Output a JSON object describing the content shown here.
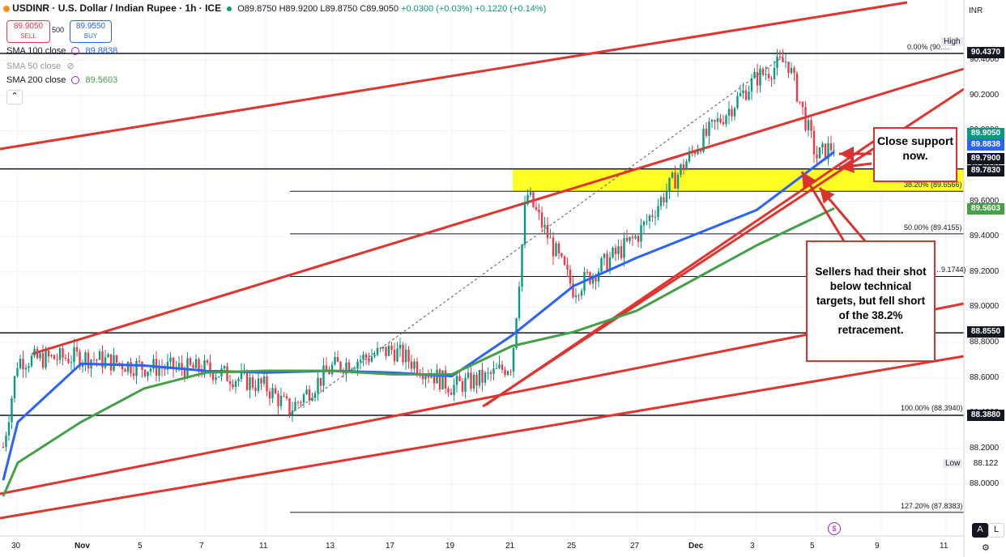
{
  "header": {
    "symbol": "USDINR · U.S. Dollar / Indian Rupee · 1h · ICE",
    "ohlc": "O89.8750 H89.9200 L89.8750 C89.9050",
    "change": "+0.0300 (+0.03%) +0.1220 (+0.14%)"
  },
  "trade": {
    "sell_price": "89.9050",
    "sell_label": "SELL",
    "spread": "500",
    "buy_price": "89.9550",
    "buy_label": "BUY"
  },
  "indicators": [
    {
      "label": "SMA 100 close",
      "value": "89.8838",
      "color": "#2962ff"
    },
    {
      "label": "SMA 50 close",
      "value": "",
      "color": "#9598a1"
    },
    {
      "label": "SMA 200 close",
      "value": "89.5603",
      "color": "#4caf50"
    }
  ],
  "currency": "INR",
  "high_label": "High",
  "low_label": "Low",
  "axis_buttons": {
    "auto": "A",
    "log": "L"
  },
  "colors": {
    "up": "#089981",
    "down": "#f23645",
    "sma100": "#2962ff",
    "sma200": "#43a047",
    "trend": "#e0342f",
    "zone": "#ffff00"
  },
  "annotations": {
    "close_support": "Close support now.",
    "sellers": "Sellers had their shot below technical targets, but fell short of the 38.2% retracement."
  },
  "fib_labels": [
    {
      "text": "0.00% (90.…",
      "price": 90.437
    },
    {
      "text": "38.20% (89.6566)",
      "price": 89.6566
    },
    {
      "text": "50.00% (89.4155)",
      "price": 89.4155
    },
    {
      "text": "…9.1744)",
      "price": 89.1744
    },
    {
      "text": "100.00% (88.3940)",
      "price": 88.394
    },
    {
      "text": "127.20% (87.8383)",
      "price": 87.8383
    }
  ],
  "price_tags": [
    {
      "text": "90.4370",
      "price": 90.437,
      "bg": "#131722",
      "fg": "#ffffff"
    },
    {
      "text": "89.9050",
      "price": 89.905,
      "bg": "#089981",
      "fg": "#ffffff"
    },
    {
      "text": "89.8838",
      "price": 89.8838,
      "bg": "#2962ff",
      "fg": "#ffffff"
    },
    {
      "text": "89.7900",
      "price": 89.79,
      "bg": "#131722",
      "fg": "#ffffff"
    },
    {
      "text": "89.7830",
      "price": 89.783,
      "bg": "#131722",
      "fg": "#ffffff"
    },
    {
      "text": "89.5603",
      "price": 89.5603,
      "bg": "#43a047",
      "fg": "#ffffff"
    },
    {
      "text": "88.8550",
      "price": 88.855,
      "bg": "#131722",
      "fg": "#ffffff"
    },
    {
      "text": "88.3880",
      "price": 88.388,
      "bg": "#131722",
      "fg": "#ffffff"
    }
  ],
  "chart_data": {
    "type": "line",
    "title": "USDINR · U.S. Dollar / Indian Rupee · 1h · ICE",
    "ylim": [
      87.8,
      90.6
    ],
    "y_ticks": [
      88.0,
      88.2,
      88.4,
      88.6,
      88.8,
      89.0,
      89.2,
      89.4,
      89.6,
      89.8,
      90.0,
      90.2,
      90.4
    ],
    "x_ticks": [
      "30",
      "Nov",
      "5",
      "7",
      "11",
      "13",
      "17",
      "19",
      "21",
      "25",
      "27",
      "Dec",
      "3",
      "5",
      "9",
      "11"
    ],
    "series": [
      {
        "name": "USDINR",
        "x": [
          "30",
          "Nov",
          "5",
          "7",
          "11",
          "13",
          "17",
          "19",
          "21",
          "25",
          "27",
          "Dec",
          "3",
          "5"
        ],
        "values": [
          88.15,
          88.75,
          88.67,
          88.68,
          88.4,
          88.66,
          88.76,
          88.52,
          89.65,
          89.05,
          89.45,
          89.95,
          90.3,
          89.9
        ]
      },
      {
        "name": "SMA 100 close",
        "x": [
          "30",
          "Nov",
          "5",
          "7",
          "11",
          "13",
          "17",
          "19",
          "21",
          "25",
          "27",
          "Dec",
          "3",
          "5"
        ],
        "values": [
          88.02,
          88.35,
          88.68,
          88.67,
          88.64,
          88.63,
          88.64,
          88.63,
          88.61,
          88.84,
          89.12,
          89.28,
          89.55,
          89.88
        ]
      },
      {
        "name": "SMA 200 close",
        "x": [
          "30",
          "Nov",
          "5",
          "7",
          "11",
          "13",
          "17",
          "19",
          "21",
          "25",
          "27",
          "Dec",
          "3",
          "5"
        ],
        "values": [
          87.93,
          88.12,
          88.35,
          88.54,
          88.63,
          88.64,
          88.64,
          88.62,
          88.62,
          88.78,
          88.86,
          88.98,
          89.35,
          89.56
        ]
      }
    ],
    "levels": {
      "high": 90.437,
      "support_1": 89.79,
      "support_2": 89.783,
      "level_3": 88.855,
      "low_line": 88.388
    },
    "zone": [
      89.6566,
      89.783
    ],
    "low": 88.122
  }
}
